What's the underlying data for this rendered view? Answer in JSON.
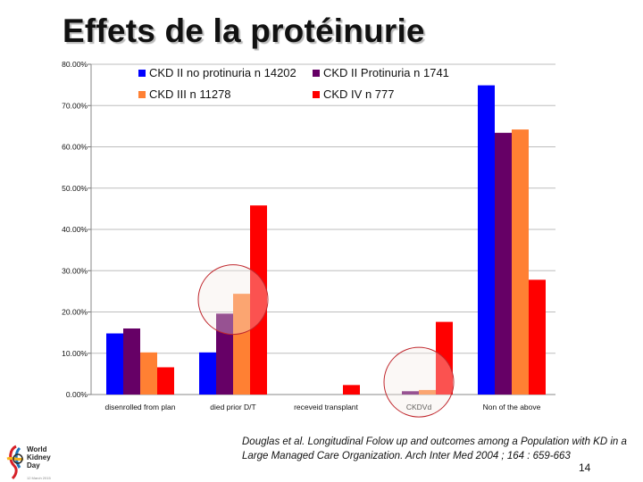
{
  "title": "Effets de la protéinurie",
  "citation": "Douglas et al. Longitudinal Folow up and outcomes among a Population with KD in a Large Managed Care Organization. Arch Inter Med 2004 ; 164 : 659-663",
  "page_number": "14",
  "logo": {
    "line1": "World",
    "line2": "Kidney",
    "line3": "Day",
    "date": "12 March 2015",
    "colors": [
      "#d62027",
      "#1b75bb",
      "#f7b519",
      "#2a2a2a"
    ]
  },
  "chart_data": {
    "type": "bar",
    "categories": [
      "disenrolled from plan",
      "died prior D/T",
      "receveid transplant",
      "CKDVd",
      "Non of the above"
    ],
    "series": [
      {
        "name": "CKD II no protinuria n 14202",
        "color": "#0000ff",
        "values": [
          14.8,
          10.2,
          0.0,
          0.0,
          74.9
        ]
      },
      {
        "name": "CKD II Protinuria n 1741",
        "color": "#660066",
        "values": [
          16.0,
          19.6,
          0.0,
          0.8,
          63.4
        ]
      },
      {
        "name": "CKD III n 11278",
        "color": "#ff8033",
        "values": [
          10.2,
          24.4,
          0.0,
          1.1,
          64.2
        ]
      },
      {
        "name": "CKD IV n 777",
        "color": "#ff0000",
        "values": [
          6.6,
          45.8,
          2.3,
          17.6,
          27.8
        ]
      }
    ],
    "y_ticks": [
      "0.00%",
      "10.00%",
      "20.00%",
      "30.00%",
      "40.00%",
      "50.00%",
      "60.00%",
      "70.00%",
      "80.00%"
    ],
    "ylim": [
      0,
      80
    ],
    "grid": true,
    "legend": "top",
    "highlight_circles": [
      {
        "category": "died prior D/T",
        "y": 23
      },
      {
        "category": "CKDVd",
        "y": 3
      }
    ],
    "highlight_color": "#c0272d"
  }
}
